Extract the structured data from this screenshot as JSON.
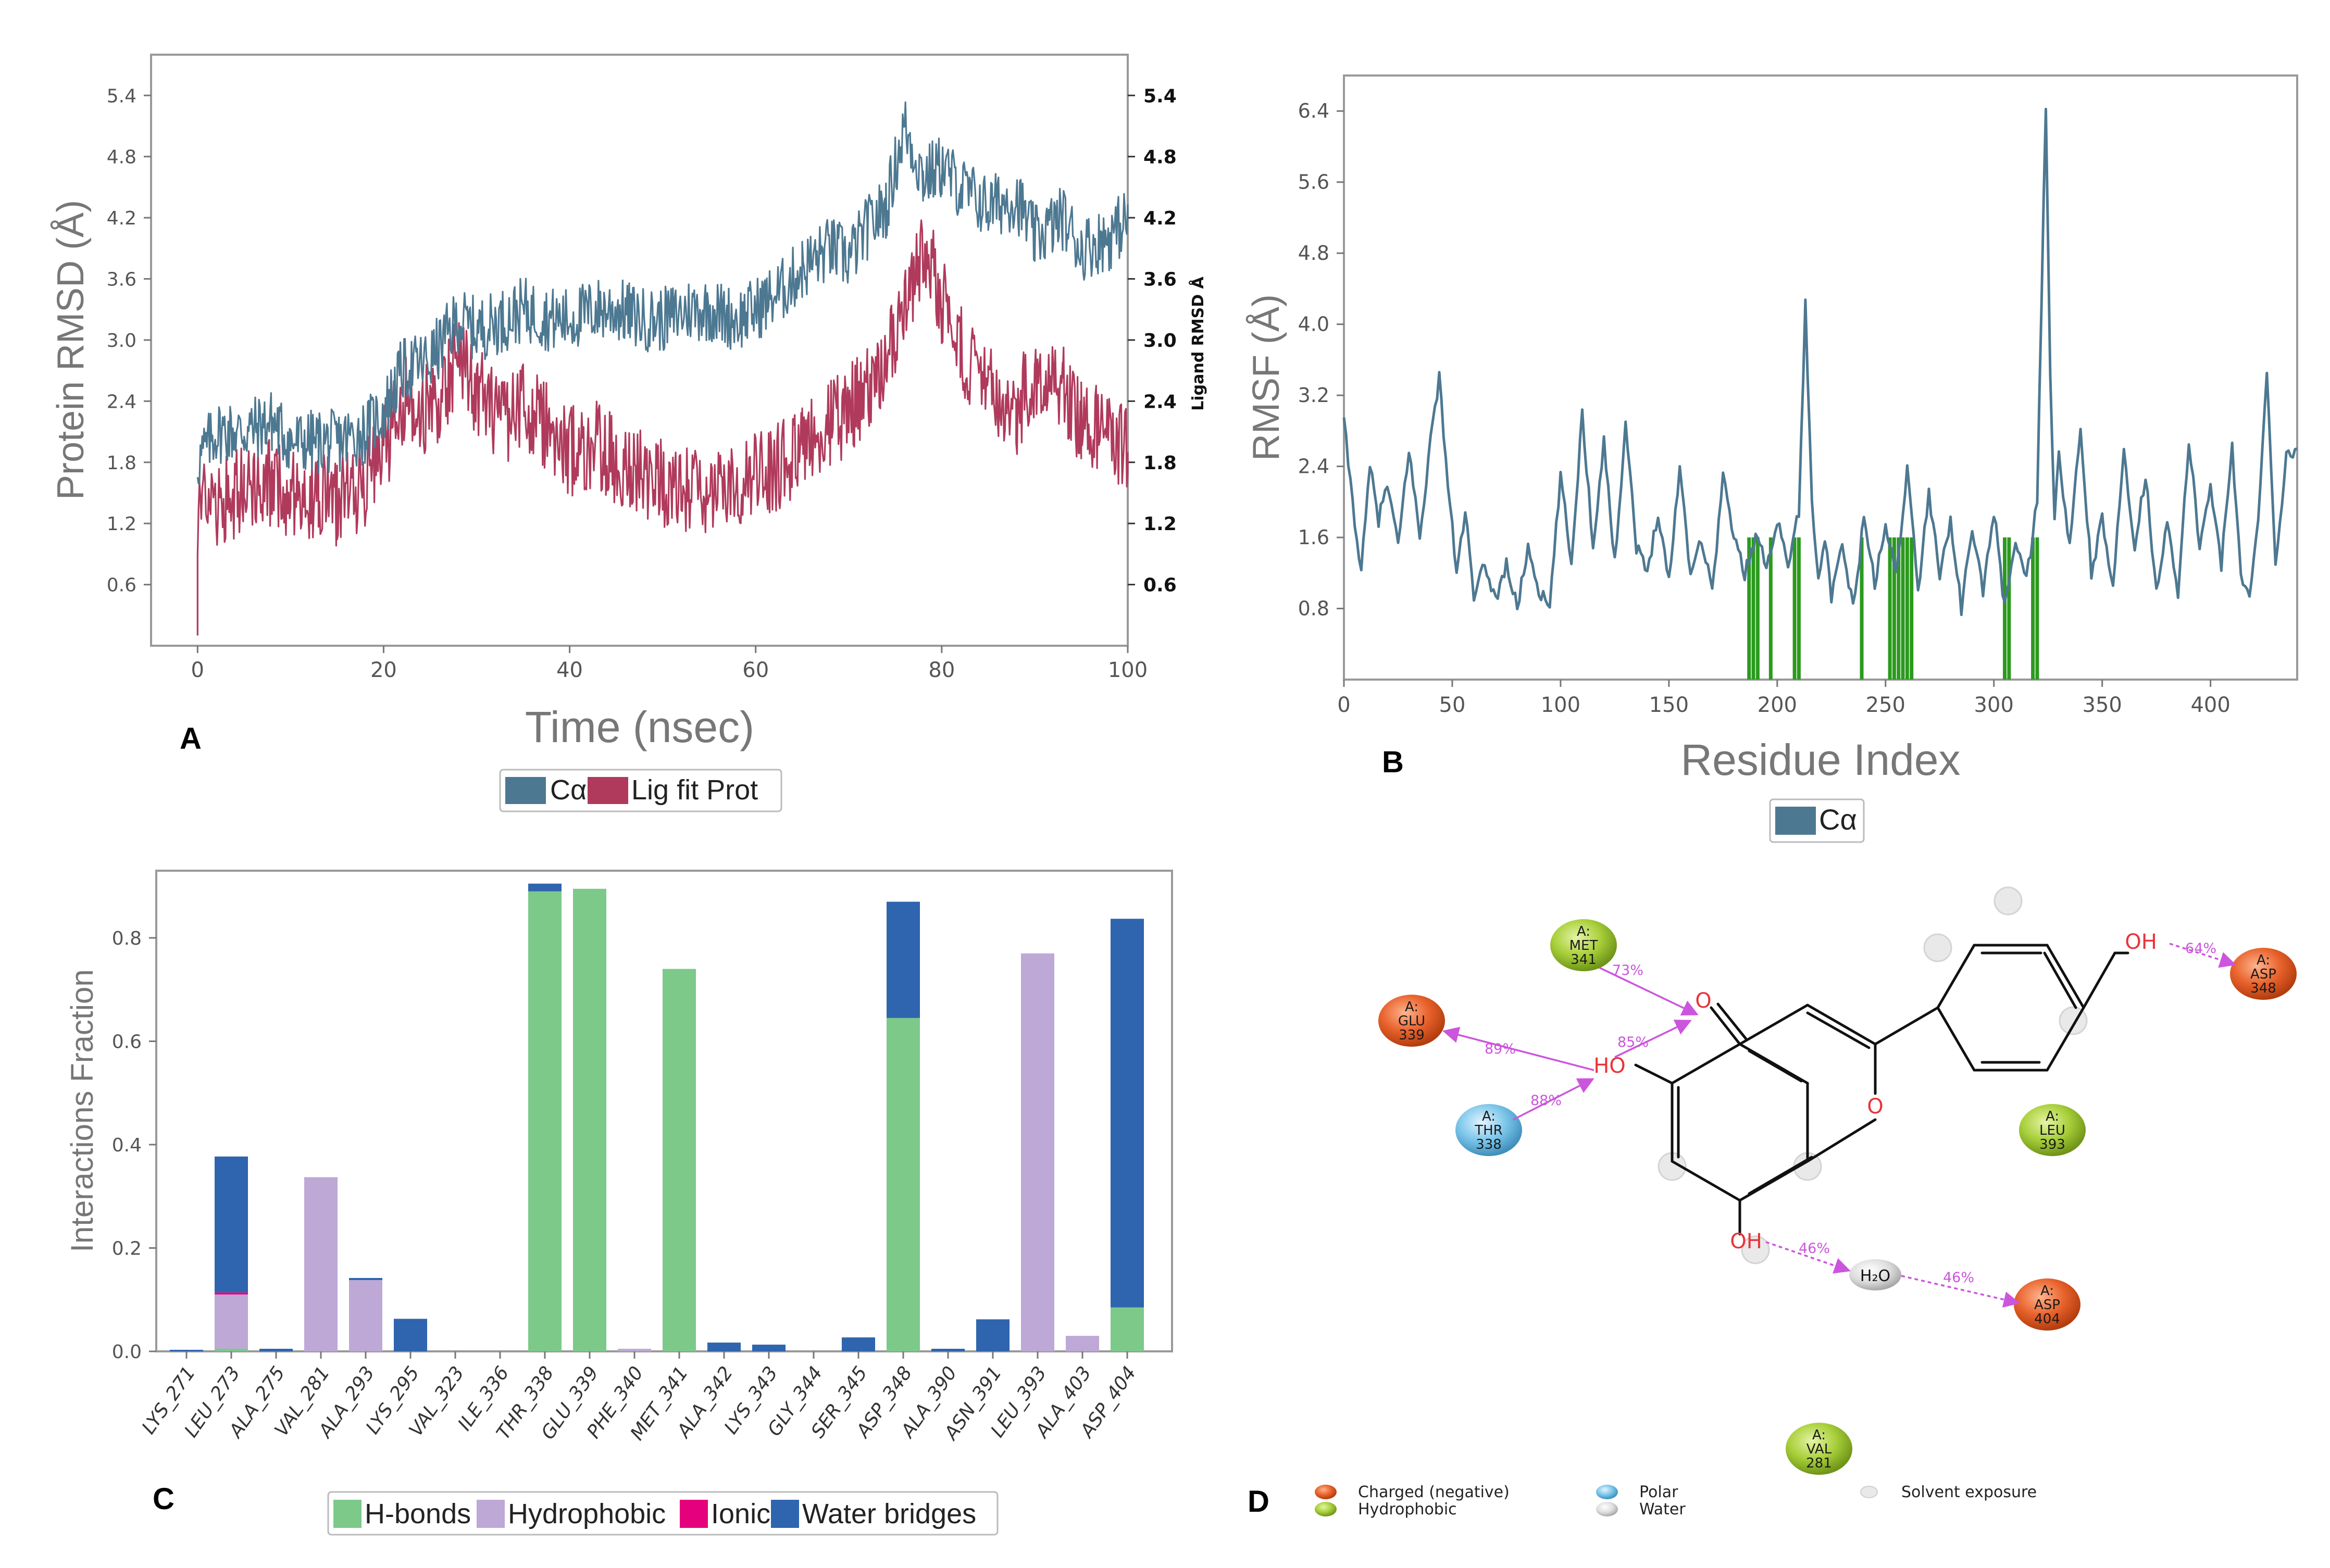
{
  "panels": {
    "A": "A",
    "B": "B",
    "C": "C",
    "D": "D"
  },
  "colors": {
    "calpha": "#4d7891",
    "lig": "#b03a5c",
    "hbond": "#7cc98a",
    "hydrophobic": "#bda8d6",
    "ionic": "#e5007d",
    "water": "#2f64ae",
    "green_marks": "#2b9a1e",
    "charged": "#e8622c",
    "hydro_node": "#a8cf3a",
    "polar": "#7cc6ea",
    "water_node": "#cfcfcf",
    "edge": "#cc55dd",
    "hetero": "#e8343a"
  },
  "chart_data": [
    {
      "id": "A",
      "type": "line",
      "title": "",
      "xlabel": "Time (nsec)",
      "ylabel": "Protein RMSD (Å)",
      "y2label": "Ligand RMSD Å",
      "xlim": [
        -5,
        100
      ],
      "ylim": [
        0,
        5.8
      ],
      "y2lim": [
        0,
        5.8
      ],
      "xticks": [
        "0",
        "20",
        "40",
        "60",
        "80",
        "100"
      ],
      "xtick_values": [
        0,
        20,
        40,
        60,
        80,
        100
      ],
      "yticks": [
        "0.6",
        "1.2",
        "1.8",
        "2.4",
        "3.0",
        "3.6",
        "4.2",
        "4.8",
        "5.4"
      ],
      "ytick_values": [
        0.6,
        1.2,
        1.8,
        2.4,
        3.0,
        3.6,
        4.2,
        4.8,
        5.4
      ],
      "y2ticks": [
        "0.6",
        "1.2",
        "1.8",
        "2.4",
        "3.0",
        "3.6",
        "4.2",
        "4.8",
        "5.4"
      ],
      "y2tick_values": [
        0.6,
        1.2,
        1.8,
        2.4,
        3.0,
        3.6,
        4.2,
        4.8,
        5.4
      ],
      "legend": [
        "Cα",
        "Lig fit Prot"
      ],
      "series": [
        {
          "name": "Cα",
          "x": [
            0,
            2,
            5,
            8,
            10,
            13,
            15,
            18,
            20,
            22,
            25,
            28,
            30,
            33,
            35,
            38,
            40,
            43,
            45,
            48,
            50,
            53,
            55,
            58,
            60,
            63,
            65,
            68,
            70,
            72,
            74,
            76,
            78,
            80,
            82,
            85,
            88,
            90,
            93,
            95,
            98,
            100
          ],
          "y": [
            1.8,
            2.1,
            2.1,
            2.2,
            2.0,
            2.0,
            2.0,
            2.1,
            2.3,
            2.7,
            2.8,
            3.2,
            3.1,
            3.2,
            3.3,
            3.2,
            3.2,
            3.3,
            3.3,
            3.2,
            3.2,
            3.3,
            3.3,
            3.2,
            3.3,
            3.5,
            3.7,
            3.9,
            3.8,
            4.1,
            4.3,
            5.1,
            4.6,
            4.7,
            4.5,
            4.3,
            4.4,
            4.0,
            4.2,
            3.9,
            4.0,
            4.2
          ]
        },
        {
          "name": "Lig fit Prot",
          "x": [
            0,
            2,
            5,
            8,
            10,
            13,
            15,
            18,
            20,
            22,
            25,
            28,
            30,
            33,
            35,
            38,
            40,
            43,
            45,
            48,
            50,
            53,
            55,
            58,
            60,
            63,
            65,
            68,
            70,
            72,
            74,
            76,
            78,
            80,
            82,
            85,
            88,
            90,
            93,
            95,
            98,
            100
          ],
          "y": [
            1.3,
            1.4,
            1.5,
            1.6,
            1.5,
            1.5,
            1.4,
            1.6,
            1.9,
            2.4,
            2.3,
            2.8,
            2.5,
            2.2,
            2.4,
            2.1,
            1.9,
            2.0,
            1.8,
            1.7,
            1.6,
            1.5,
            1.4,
            1.6,
            1.7,
            1.8,
            2.0,
            2.2,
            2.3,
            2.5,
            2.8,
            3.2,
            3.9,
            3.4,
            2.9,
            2.5,
            2.3,
            2.7,
            2.6,
            2.2,
            2.1,
            1.9
          ]
        }
      ]
    },
    {
      "id": "B",
      "type": "line",
      "title": "",
      "xlabel": "Residue Index",
      "ylabel": "RMSF (Å)",
      "xlim": [
        0,
        440
      ],
      "ylim": [
        0,
        6.8
      ],
      "xticks": [
        "0",
        "50",
        "100",
        "150",
        "200",
        "250",
        "300",
        "350",
        "400"
      ],
      "xtick_values": [
        0,
        50,
        100,
        150,
        200,
        250,
        300,
        350,
        400
      ],
      "yticks": [
        "0.8",
        "1.6",
        "2.4",
        "3.2",
        "4.0",
        "4.8",
        "5.6",
        "6.4"
      ],
      "ytick_values": [
        0.8,
        1.6,
        2.4,
        3.2,
        4.0,
        4.8,
        5.6,
        6.4
      ],
      "legend": [
        "Cα"
      ],
      "series": [
        {
          "name": "Cα",
          "x": [
            0,
            4,
            8,
            12,
            16,
            20,
            25,
            30,
            35,
            40,
            44,
            48,
            52,
            56,
            60,
            65,
            70,
            75,
            80,
            85,
            90,
            95,
            100,
            105,
            110,
            115,
            120,
            125,
            130,
            135,
            140,
            145,
            150,
            155,
            160,
            165,
            170,
            175,
            180,
            185,
            190,
            195,
            200,
            205,
            210,
            213,
            216,
            219,
            222,
            225,
            230,
            235,
            240,
            245,
            250,
            255,
            260,
            265,
            270,
            275,
            280,
            285,
            290,
            295,
            300,
            305,
            310,
            315,
            320,
            324,
            326,
            328,
            330,
            335,
            340,
            345,
            350,
            355,
            360,
            365,
            370,
            375,
            380,
            385,
            390,
            395,
            400,
            405,
            410,
            414,
            418,
            422,
            426,
            430,
            435,
            440
          ],
          "y": [
            2.9,
            2.0,
            1.2,
            2.4,
            1.8,
            2.2,
            1.5,
            2.6,
            1.6,
            2.7,
            3.4,
            2.2,
            1.2,
            1.9,
            0.9,
            1.3,
            0.9,
            1.3,
            0.8,
            1.5,
            1.0,
            0.8,
            2.3,
            1.3,
            3.0,
            1.5,
            2.7,
            1.3,
            2.9,
            1.5,
            1.2,
            1.9,
            1.1,
            2.4,
            1.2,
            1.6,
            1.0,
            2.3,
            1.6,
            1.2,
            1.6,
            1.3,
            1.8,
            1.3,
            1.9,
            4.2,
            2.0,
            1.2,
            1.6,
            0.9,
            1.5,
            0.8,
            1.8,
            1.1,
            1.7,
            1.2,
            2.4,
            1.0,
            2.1,
            1.2,
            1.8,
            0.8,
            1.7,
            1.0,
            1.9,
            0.8,
            1.6,
            1.1,
            2.0,
            6.5,
            3.5,
            1.8,
            2.5,
            1.5,
            2.8,
            1.2,
            1.8,
            1.0,
            2.6,
            1.5,
            2.3,
            1.0,
            1.8,
            0.9,
            2.7,
            1.5,
            2.2,
            1.3,
            2.6,
            1.2,
            0.9,
            1.8,
            3.5,
            1.3,
            2.5,
            2.6
          ]
        }
      ],
      "contact_residues": [
        187,
        189,
        191,
        197,
        208,
        210,
        239,
        252,
        254,
        256,
        258,
        260,
        262,
        305,
        307,
        318,
        320
      ]
    },
    {
      "id": "C",
      "type": "bar",
      "stacked": true,
      "title": "",
      "xlabel": "",
      "ylabel": "Interactions Fraction",
      "ylim": [
        0,
        0.93
      ],
      "yticks": [
        "0.0",
        "0.2",
        "0.4",
        "0.6",
        "0.8"
      ],
      "ytick_values": [
        0,
        0.2,
        0.4,
        0.6,
        0.8
      ],
      "categories": [
        "LYS_271",
        "LEU_273",
        "ALA_275",
        "VAL_281",
        "ALA_293",
        "LYS_295",
        "VAL_323",
        "ILE_336",
        "THR_338",
        "GLU_339",
        "PHE_340",
        "MET_341",
        "ALA_342",
        "LYS_343",
        "GLY_344",
        "SER_345",
        "ASP_348",
        "ALA_390",
        "ASN_391",
        "LEU_393",
        "ALA_403",
        "ASP_404"
      ],
      "legend": [
        "H-bonds",
        "Hydrophobic",
        "Ionic",
        "Water bridges"
      ],
      "series": [
        {
          "name": "H-bonds",
          "values": [
            0,
            0.005,
            0,
            0,
            0,
            0,
            0,
            0,
            0.89,
            0.895,
            0,
            0.74,
            0,
            0,
            0,
            0,
            0.645,
            0,
            0,
            0,
            0,
            0.085
          ]
        },
        {
          "name": "Hydrophobic",
          "values": [
            0,
            0.105,
            0,
            0.337,
            0.138,
            0,
            0,
            0,
            0,
            0,
            0.005,
            0,
            0,
            0,
            0,
            0,
            0,
            0,
            0,
            0.77,
            0.03,
            0
          ]
        },
        {
          "name": "Ionic",
          "values": [
            0,
            0.004,
            0,
            0,
            0,
            0,
            0,
            0,
            0,
            0,
            0,
            0,
            0,
            0,
            0,
            0,
            0,
            0,
            0,
            0,
            0,
            0
          ]
        },
        {
          "name": "Water bridges",
          "values": [
            0.003,
            0.263,
            0.005,
            0,
            0.004,
            0.063,
            0,
            0,
            0.015,
            0,
            0,
            0,
            0.017,
            0.013,
            0,
            0.027,
            0.225,
            0.005,
            0.062,
            0,
            0,
            0.752
          ]
        }
      ]
    }
  ],
  "ligand_diagram": {
    "residues": [
      {
        "id": "met341",
        "line1": "A:",
        "line2": "MET",
        "line3": "341",
        "kind": "hydrophobic"
      },
      {
        "id": "glu339",
        "line1": "A:",
        "line2": "GLU",
        "line3": "339",
        "kind": "charged"
      },
      {
        "id": "thr338",
        "line1": "A:",
        "line2": "THR",
        "line3": "338",
        "kind": "polar"
      },
      {
        "id": "asp348",
        "line1": "A:",
        "line2": "ASP",
        "line3": "348",
        "kind": "charged"
      },
      {
        "id": "leu393",
        "line1": "A:",
        "line2": "LEU",
        "line3": "393",
        "kind": "hydrophobic"
      },
      {
        "id": "asp404",
        "line1": "A:",
        "line2": "ASP",
        "line3": "404",
        "kind": "charged"
      },
      {
        "id": "val281",
        "line1": "A:",
        "line2": "VAL",
        "line3": "281",
        "kind": "hydrophobic"
      }
    ],
    "atoms": {
      "o_keto": "O",
      "ho_5": "HO",
      "o_ring": "O",
      "oh_7": "OH",
      "oh_4p": "OH",
      "water": "H₂O"
    },
    "interactions": [
      {
        "from": "met341",
        "to": "o_keto",
        "label": "73%"
      },
      {
        "from": "ho_5",
        "to": "o_keto",
        "label": "85%"
      },
      {
        "from": "ho_5",
        "to": "glu339",
        "label": "89%"
      },
      {
        "from": "thr338",
        "to": "ho_5",
        "label": "88%"
      },
      {
        "from": "oh_4p",
        "to": "asp348",
        "label": "64%"
      },
      {
        "from": "oh_7",
        "to": "water",
        "label": "46%"
      },
      {
        "from": "water",
        "to": "asp404",
        "label": "46%"
      }
    ],
    "legend": [
      {
        "kind": "charged",
        "label": "Charged (negative)"
      },
      {
        "kind": "hydrophobic",
        "label": "Hydrophobic"
      },
      {
        "kind": "polar",
        "label": "Polar"
      },
      {
        "kind": "water",
        "label": "Water"
      },
      {
        "kind": "solvent",
        "label": "Solvent exposure"
      }
    ]
  }
}
